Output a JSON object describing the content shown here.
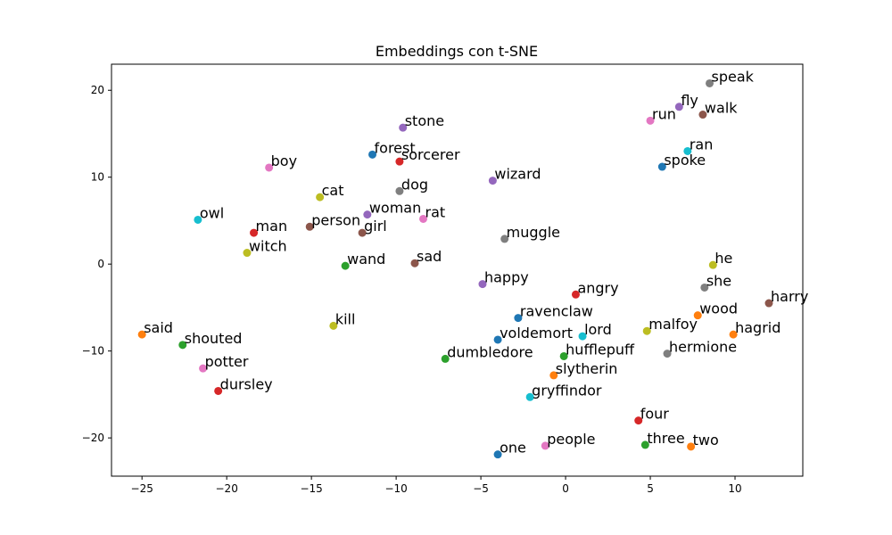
{
  "chart_data": {
    "type": "scatter",
    "title": "Embeddings con t-SNE",
    "xlabel": "",
    "ylabel": "",
    "xlim": [
      -26.8,
      14.0
    ],
    "ylim": [
      -24.4,
      23.0
    ],
    "xticks": [
      -25,
      -20,
      -15,
      -10,
      -5,
      0,
      5,
      10
    ],
    "yticks": [
      20,
      10,
      0,
      -10,
      -20
    ],
    "xtick_labels": [
      "−25",
      "−20",
      "−15",
      "−10",
      "−5",
      "0",
      "5",
      "10"
    ],
    "ytick_labels": [
      "20",
      "10",
      "0",
      "−10",
      "−20"
    ],
    "grid": false,
    "legend": "none",
    "points": [
      {
        "label": "speak",
        "x": 8.5,
        "y": 20.8,
        "color": "#7f7f7f"
      },
      {
        "label": "fly",
        "x": 6.7,
        "y": 18.1,
        "color": "#9467bd"
      },
      {
        "label": "walk",
        "x": 8.1,
        "y": 17.2,
        "color": "#8c564b"
      },
      {
        "label": "run",
        "x": 5.0,
        "y": 16.5,
        "color": "#e377c2"
      },
      {
        "label": "ran",
        "x": 7.2,
        "y": 13.0,
        "color": "#17becf"
      },
      {
        "label": "spoke",
        "x": 5.7,
        "y": 11.2,
        "color": "#1f77b4"
      },
      {
        "label": "stone",
        "x": -9.6,
        "y": 15.7,
        "color": "#9467bd"
      },
      {
        "label": "forest",
        "x": -11.4,
        "y": 12.6,
        "color": "#1f77b4"
      },
      {
        "label": "sorcerer",
        "x": -9.8,
        "y": 11.8,
        "color": "#d62728"
      },
      {
        "label": "boy",
        "x": -17.5,
        "y": 11.1,
        "color": "#e377c2"
      },
      {
        "label": "wizard",
        "x": -4.3,
        "y": 9.6,
        "color": "#9467bd"
      },
      {
        "label": "dog",
        "x": -9.8,
        "y": 8.4,
        "color": "#7f7f7f"
      },
      {
        "label": "cat",
        "x": -14.5,
        "y": 7.7,
        "color": "#bcbd22"
      },
      {
        "label": "owl",
        "x": -21.7,
        "y": 5.1,
        "color": "#17becf"
      },
      {
        "label": "woman",
        "x": -11.7,
        "y": 5.7,
        "color": "#9467bd"
      },
      {
        "label": "rat",
        "x": -8.4,
        "y": 5.2,
        "color": "#e377c2"
      },
      {
        "label": "person",
        "x": -15.1,
        "y": 4.3,
        "color": "#8c564b"
      },
      {
        "label": "girl",
        "x": -12.0,
        "y": 3.6,
        "color": "#8c564b"
      },
      {
        "label": "man",
        "x": -18.4,
        "y": 3.6,
        "color": "#d62728"
      },
      {
        "label": "muggle",
        "x": -3.6,
        "y": 2.9,
        "color": "#7f7f7f"
      },
      {
        "label": "witch",
        "x": -18.8,
        "y": 1.3,
        "color": "#bcbd22"
      },
      {
        "label": "wand",
        "x": -13.0,
        "y": -0.2,
        "color": "#2ca02c"
      },
      {
        "label": "sad",
        "x": -8.9,
        "y": 0.1,
        "color": "#8c564b"
      },
      {
        "label": "he",
        "x": 8.7,
        "y": -0.1,
        "color": "#bcbd22"
      },
      {
        "label": "happy",
        "x": -4.9,
        "y": -2.3,
        "color": "#9467bd"
      },
      {
        "label": "she",
        "x": 8.2,
        "y": -2.7,
        "color": "#7f7f7f"
      },
      {
        "label": "angry",
        "x": 0.6,
        "y": -3.5,
        "color": "#d62728"
      },
      {
        "label": "harry",
        "x": 12.0,
        "y": -4.5,
        "color": "#8c564b"
      },
      {
        "label": "wood",
        "x": 7.8,
        "y": -5.9,
        "color": "#ff7f0e"
      },
      {
        "label": "ravenclaw",
        "x": -2.8,
        "y": -6.2,
        "color": "#1f77b4"
      },
      {
        "label": "kill",
        "x": -13.7,
        "y": -7.1,
        "color": "#bcbd22"
      },
      {
        "label": "malfoy",
        "x": 4.8,
        "y": -7.7,
        "color": "#bcbd22"
      },
      {
        "label": "said",
        "x": -25.0,
        "y": -8.1,
        "color": "#ff7f0e"
      },
      {
        "label": "hagrid",
        "x": 9.9,
        "y": -8.1,
        "color": "#ff7f0e"
      },
      {
        "label": "lord",
        "x": 1.0,
        "y": -8.3,
        "color": "#17becf"
      },
      {
        "label": "voldemort",
        "x": -4.0,
        "y": -8.7,
        "color": "#1f77b4"
      },
      {
        "label": "shouted",
        "x": -22.6,
        "y": -9.3,
        "color": "#2ca02c"
      },
      {
        "label": "hermione",
        "x": 6.0,
        "y": -10.3,
        "color": "#7f7f7f"
      },
      {
        "label": "hufflepuff",
        "x": -0.1,
        "y": -10.6,
        "color": "#2ca02c"
      },
      {
        "label": "dumbledore",
        "x": -7.1,
        "y": -10.9,
        "color": "#2ca02c"
      },
      {
        "label": "potter",
        "x": -21.4,
        "y": -12.0,
        "color": "#e377c2"
      },
      {
        "label": "slytherin",
        "x": -0.7,
        "y": -12.8,
        "color": "#ff7f0e"
      },
      {
        "label": "dursley",
        "x": -20.5,
        "y": -14.6,
        "color": "#d62728"
      },
      {
        "label": "gryffindor",
        "x": -2.1,
        "y": -15.3,
        "color": "#17becf"
      },
      {
        "label": "four",
        "x": 4.3,
        "y": -18.0,
        "color": "#d62728"
      },
      {
        "label": "people",
        "x": -1.2,
        "y": -20.9,
        "color": "#e377c2"
      },
      {
        "label": "three",
        "x": 4.7,
        "y": -20.8,
        "color": "#2ca02c"
      },
      {
        "label": "two",
        "x": 7.4,
        "y": -21.0,
        "color": "#ff7f0e"
      },
      {
        "label": "one",
        "x": -4.0,
        "y": -21.9,
        "color": "#1f77b4"
      }
    ]
  }
}
